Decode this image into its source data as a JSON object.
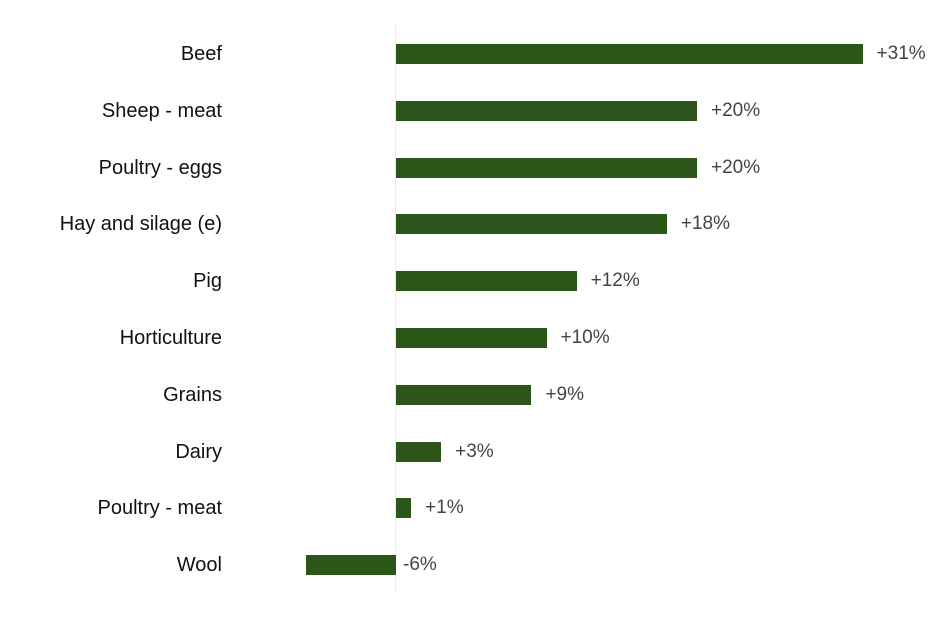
{
  "chart_data": {
    "type": "bar",
    "orientation": "horizontal",
    "title": "",
    "xlabel": "",
    "ylabel": "",
    "categories": [
      "Beef",
      "Sheep - meat",
      "Poultry - eggs",
      "Hay and silage (e)",
      "Pig",
      "Horticulture",
      "Grains",
      "Dairy",
      "Poultry - meat",
      "Wool"
    ],
    "values": [
      31,
      20,
      20,
      18,
      12,
      10,
      9,
      3,
      1,
      -6
    ],
    "labels": [
      "+31%",
      "+20%",
      "+20%",
      "+18%",
      "+12%",
      "+10%",
      "+9%",
      "+3%",
      "+1%",
      "-6%"
    ],
    "unit": "%",
    "xlim": [
      -6.5,
      33
    ],
    "grid": false,
    "legend": null,
    "bar_color": "#2b5519"
  }
}
